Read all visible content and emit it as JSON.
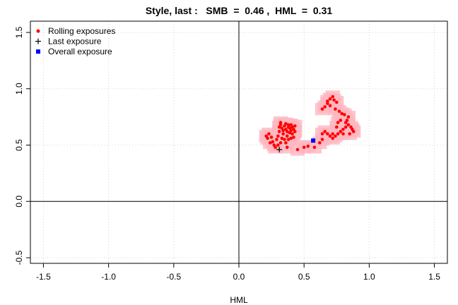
{
  "chart_data": {
    "type": "scatter",
    "title": "Style, last :   SMB  =  0.46 ,  HML  =  0.31",
    "xlabel": "HML",
    "ylabel": "",
    "xlim": [
      -1.6,
      1.6
    ],
    "ylim": [
      -0.55,
      1.6
    ],
    "x_ticks": [
      -1.5,
      -1.0,
      -0.5,
      0.0,
      0.5,
      1.0,
      1.5
    ],
    "x_tick_labels": [
      "-1.5",
      "-1.0",
      "-0.5",
      "0.0",
      "0.5",
      "1.0",
      "1.5"
    ],
    "y_ticks": [
      -0.5,
      0.0,
      0.5,
      1.0,
      1.5
    ],
    "y_tick_labels": [
      "-0.5",
      "0.0",
      "0.5",
      "1.0",
      "1.5"
    ],
    "grid": true,
    "legend_position": "top-left",
    "legend": [
      {
        "label": "Rolling exposures",
        "marker": "circle",
        "color": "#ff0000"
      },
      {
        "label": "Last exposure",
        "marker": "plus",
        "color": "#000000"
      },
      {
        "label": "Overall exposure",
        "marker": "square",
        "color": "#0000ff"
      }
    ],
    "colors": {
      "rolling": "#ff0000",
      "last": "#000000",
      "overall": "#0000ff",
      "shadow": "#ffb6c1"
    },
    "series": [
      {
        "name": "Rolling exposures",
        "points": [
          [
            0.24,
            0.52
          ],
          [
            0.22,
            0.56
          ],
          [
            0.21,
            0.58
          ],
          [
            0.23,
            0.6
          ],
          [
            0.25,
            0.57
          ],
          [
            0.26,
            0.53
          ],
          [
            0.27,
            0.5
          ],
          [
            0.28,
            0.48
          ],
          [
            0.29,
            0.55
          ],
          [
            0.3,
            0.58
          ],
          [
            0.31,
            0.62
          ],
          [
            0.31,
            0.66
          ],
          [
            0.32,
            0.68
          ],
          [
            0.32,
            0.7
          ],
          [
            0.33,
            0.65
          ],
          [
            0.34,
            0.63
          ],
          [
            0.34,
            0.6
          ],
          [
            0.35,
            0.67
          ],
          [
            0.36,
            0.69
          ],
          [
            0.36,
            0.64
          ],
          [
            0.37,
            0.62
          ],
          [
            0.37,
            0.58
          ],
          [
            0.38,
            0.66
          ],
          [
            0.38,
            0.68
          ],
          [
            0.39,
            0.65
          ],
          [
            0.39,
            0.61
          ],
          [
            0.4,
            0.68
          ],
          [
            0.4,
            0.63
          ],
          [
            0.41,
            0.66
          ],
          [
            0.41,
            0.6
          ],
          [
            0.42,
            0.64
          ],
          [
            0.43,
            0.62
          ],
          [
            0.43,
            0.67
          ],
          [
            0.42,
            0.57
          ],
          [
            0.35,
            0.55
          ],
          [
            0.36,
            0.52
          ],
          [
            0.38,
            0.55
          ],
          [
            0.4,
            0.56
          ],
          [
            0.33,
            0.56
          ],
          [
            0.3,
            0.5
          ],
          [
            0.32,
            0.52
          ],
          [
            0.37,
            0.48
          ],
          [
            0.45,
            0.46
          ],
          [
            0.5,
            0.48
          ],
          [
            0.53,
            0.49
          ],
          [
            0.58,
            0.48
          ],
          [
            0.62,
            0.52
          ],
          [
            0.64,
            0.55
          ],
          [
            0.64,
            0.6
          ],
          [
            0.66,
            0.62
          ],
          [
            0.68,
            0.6
          ],
          [
            0.7,
            0.58
          ],
          [
            0.72,
            0.56
          ],
          [
            0.74,
            0.58
          ],
          [
            0.76,
            0.6
          ],
          [
            0.78,
            0.62
          ],
          [
            0.8,
            0.64
          ],
          [
            0.82,
            0.66
          ],
          [
            0.84,
            0.68
          ],
          [
            0.86,
            0.66
          ],
          [
            0.87,
            0.64
          ],
          [
            0.88,
            0.62
          ],
          [
            0.82,
            0.7
          ],
          [
            0.83,
            0.72
          ],
          [
            0.84,
            0.75
          ],
          [
            0.81,
            0.77
          ],
          [
            0.79,
            0.78
          ],
          [
            0.77,
            0.8
          ],
          [
            0.74,
            0.82
          ],
          [
            0.7,
            0.85
          ],
          [
            0.68,
            0.87
          ],
          [
            0.66,
            0.84
          ],
          [
            0.64,
            0.82
          ],
          [
            0.68,
            0.89
          ],
          [
            0.7,
            0.91
          ],
          [
            0.73,
            0.9
          ],
          [
            0.75,
            0.88
          ],
          [
            0.72,
            0.93
          ],
          [
            0.76,
            0.7
          ],
          [
            0.78,
            0.72
          ],
          [
            0.75,
            0.66
          ],
          [
            0.8,
            0.6
          ],
          [
            0.72,
            0.6
          ],
          [
            0.85,
            0.6
          ]
        ]
      },
      {
        "name": "Last exposure",
        "points": [
          [
            0.31,
            0.46
          ]
        ]
      },
      {
        "name": "Overall exposure",
        "points": [
          [
            0.57,
            0.54
          ]
        ]
      }
    ]
  }
}
